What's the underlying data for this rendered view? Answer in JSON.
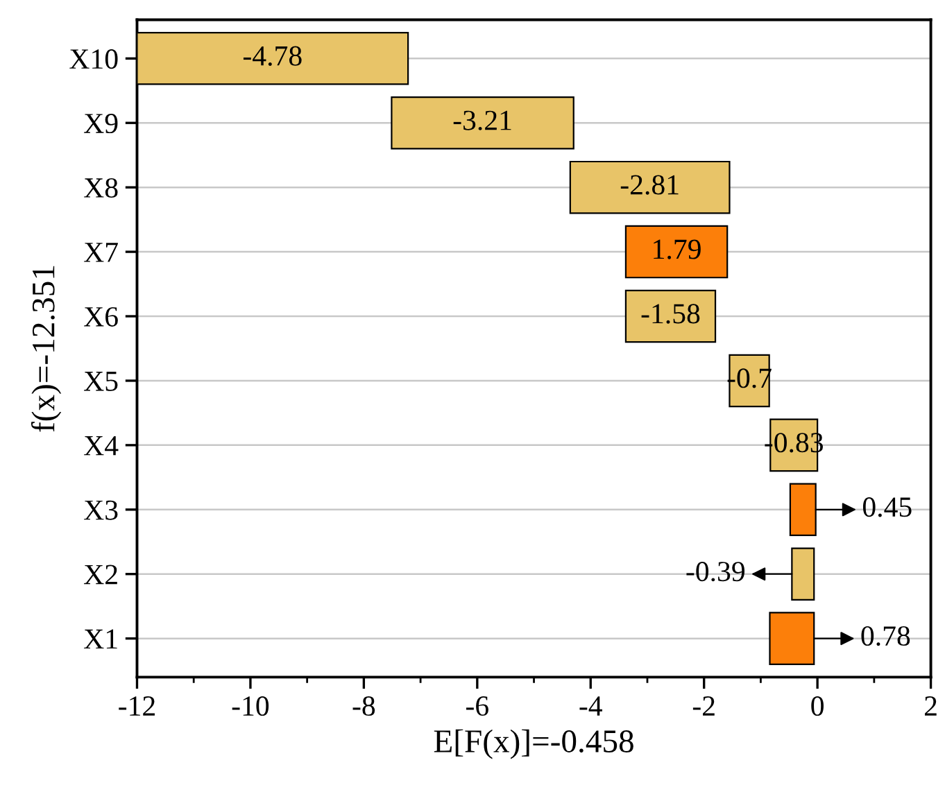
{
  "chart_data": {
    "type": "bar",
    "orientation": "horizontal",
    "xlabel": "E[F(x)]=-0.458",
    "ylabel": "f(x)=-12.351",
    "categories": [
      "X10",
      "X9",
      "X8",
      "X7",
      "X6",
      "X5",
      "X4",
      "X3",
      "X2",
      "X1"
    ],
    "values": [
      -4.78,
      -3.21,
      -2.81,
      1.79,
      -1.58,
      -0.7,
      -0.83,
      0.45,
      -0.39,
      0.78
    ],
    "base": [
      -7.22,
      -4.3,
      -1.55,
      -3.38,
      -1.8,
      -0.85,
      0,
      -0.48,
      -0.06,
      -0.84
    ],
    "colors": [
      "#e8c468",
      "#e8c468",
      "#e8c468",
      "#fc7f0a",
      "#e8c468",
      "#e8c468",
      "#e8c468",
      "#fc7f0a",
      "#e8c468",
      "#fc7f0a"
    ],
    "value_labels": [
      "-4.78",
      "-3.21",
      "-2.81",
      "1.79",
      "-1.58",
      "-0.7",
      "-0.83",
      null,
      null,
      null
    ],
    "annotations": [
      {
        "text": "0.45",
        "x": -0.03,
        "y": "X3"
      },
      {
        "text": "-0.39",
        "x": -0.45,
        "y": "X2"
      },
      {
        "text": "0.78",
        "x": -0.06,
        "y": "X1"
      }
    ],
    "xlim": [
      -12,
      2
    ],
    "xticks": [
      -12,
      -10,
      -8,
      -6,
      -4,
      -2,
      0,
      2
    ],
    "grid": "y"
  }
}
